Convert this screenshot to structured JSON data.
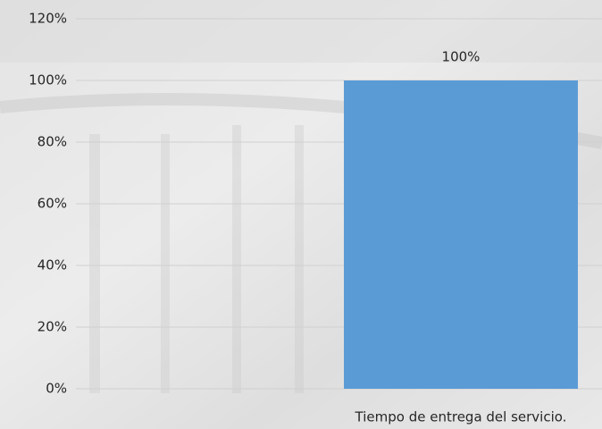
{
  "chart_data": {
    "type": "bar",
    "categories": [
      "Tiempo de entrega del servicio."
    ],
    "values": [
      100
    ],
    "value_labels": [
      "100%"
    ],
    "color": "#5b9bd5",
    "ylim": [
      0,
      120
    ],
    "yticks": [
      {
        "value": 0,
        "label": "0%"
      },
      {
        "value": 20,
        "label": "20%"
      },
      {
        "value": 40,
        "label": "40%"
      },
      {
        "value": 60,
        "label": "60%"
      },
      {
        "value": 80,
        "label": "80%"
      },
      {
        "value": 100,
        "label": "100%"
      },
      {
        "value": 120,
        "label": "120%"
      }
    ],
    "grid": true
  }
}
